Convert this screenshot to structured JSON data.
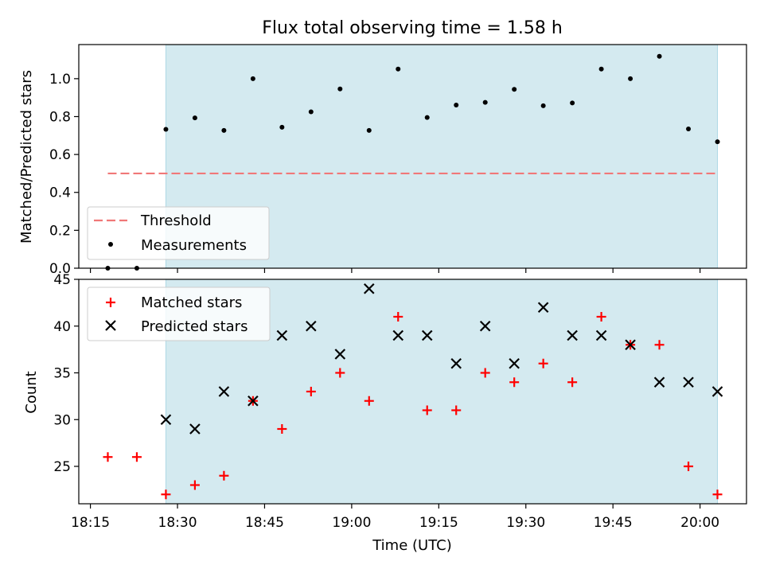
{
  "chart_data": [
    {
      "type": "scatter",
      "title": "Flux total observing time = 1.58 h",
      "ylabel": "Matched/Predicted stars",
      "ylim": [
        0,
        1.18
      ],
      "yticks": [
        0.0,
        0.2,
        0.4,
        0.6,
        0.8,
        1.0
      ],
      "ytick_labels": [
        "0.0",
        "0.2",
        "0.4",
        "0.6",
        "0.8",
        "1.0"
      ],
      "shaded_range": [
        "18:28",
        "20:03"
      ],
      "threshold": {
        "label": "Threshold",
        "value": 0.5,
        "x_range": [
          "18:18",
          "20:03"
        ],
        "color": "#f07878"
      },
      "series": [
        {
          "name": "Measurements",
          "marker": "dot",
          "color": "#000000",
          "x": [
            "18:18",
            "18:23",
            "18:28",
            "18:33",
            "18:38",
            "18:43",
            "18:48",
            "18:53",
            "18:58",
            "19:03",
            "19:08",
            "19:13",
            "19:18",
            "19:23",
            "19:28",
            "19:33",
            "19:38",
            "19:43",
            "19:48",
            "19:53",
            "19:58",
            "20:03"
          ],
          "values": [
            0.0,
            0.0,
            0.733,
            0.793,
            0.727,
            1.0,
            0.744,
            0.825,
            0.946,
            0.727,
            1.051,
            0.795,
            0.861,
            0.875,
            0.944,
            0.857,
            0.872,
            1.051,
            1.0,
            1.118,
            0.735,
            0.667
          ]
        }
      ],
      "legend_position": "lower-left"
    },
    {
      "type": "scatter",
      "xlabel": "Time (UTC)",
      "ylabel": "Count",
      "ylim": [
        21,
        45
      ],
      "yticks": [
        25,
        30,
        35,
        40,
        45
      ],
      "ytick_labels": [
        "25",
        "30",
        "35",
        "40",
        "45"
      ],
      "xlim": [
        "18:13",
        "20:08"
      ],
      "xticks": [
        "18:15",
        "18:30",
        "18:45",
        "19:00",
        "19:15",
        "19:30",
        "19:45",
        "20:00"
      ],
      "xtick_labels": [
        "18:15",
        "18:30",
        "18:45",
        "19:00",
        "19:15",
        "19:30",
        "19:45",
        "20:00"
      ],
      "shaded_range": [
        "18:28",
        "20:03"
      ],
      "series": [
        {
          "name": "Matched stars",
          "marker": "plus",
          "color": "#ff0000",
          "x": [
            "18:18",
            "18:23",
            "18:28",
            "18:33",
            "18:38",
            "18:43",
            "18:48",
            "18:53",
            "18:58",
            "19:03",
            "19:08",
            "19:13",
            "19:18",
            "19:23",
            "19:28",
            "19:33",
            "19:38",
            "19:43",
            "19:48",
            "19:53",
            "19:58",
            "20:03"
          ],
          "values": [
            26,
            26,
            22,
            23,
            24,
            32,
            29,
            33,
            35,
            32,
            41,
            31,
            31,
            35,
            34,
            36,
            34,
            41,
            38,
            38,
            25,
            22
          ]
        },
        {
          "name": "Predicted stars",
          "marker": "x",
          "color": "#000000",
          "x": [
            "18:28",
            "18:33",
            "18:38",
            "18:43",
            "18:48",
            "18:53",
            "18:58",
            "19:03",
            "19:08",
            "19:13",
            "19:18",
            "19:23",
            "19:28",
            "19:33",
            "19:38",
            "19:43",
            "19:48",
            "19:53",
            "19:58",
            "20:03"
          ],
          "values": [
            30,
            29,
            33,
            32,
            39,
            40,
            37,
            44,
            39,
            39,
            36,
            40,
            36,
            42,
            39,
            39,
            38,
            34,
            34,
            33
          ]
        }
      ],
      "legend_position": "upper-left"
    }
  ],
  "colors": {
    "shade": "#d4eaf0",
    "shade_edge": "#add8e6"
  }
}
